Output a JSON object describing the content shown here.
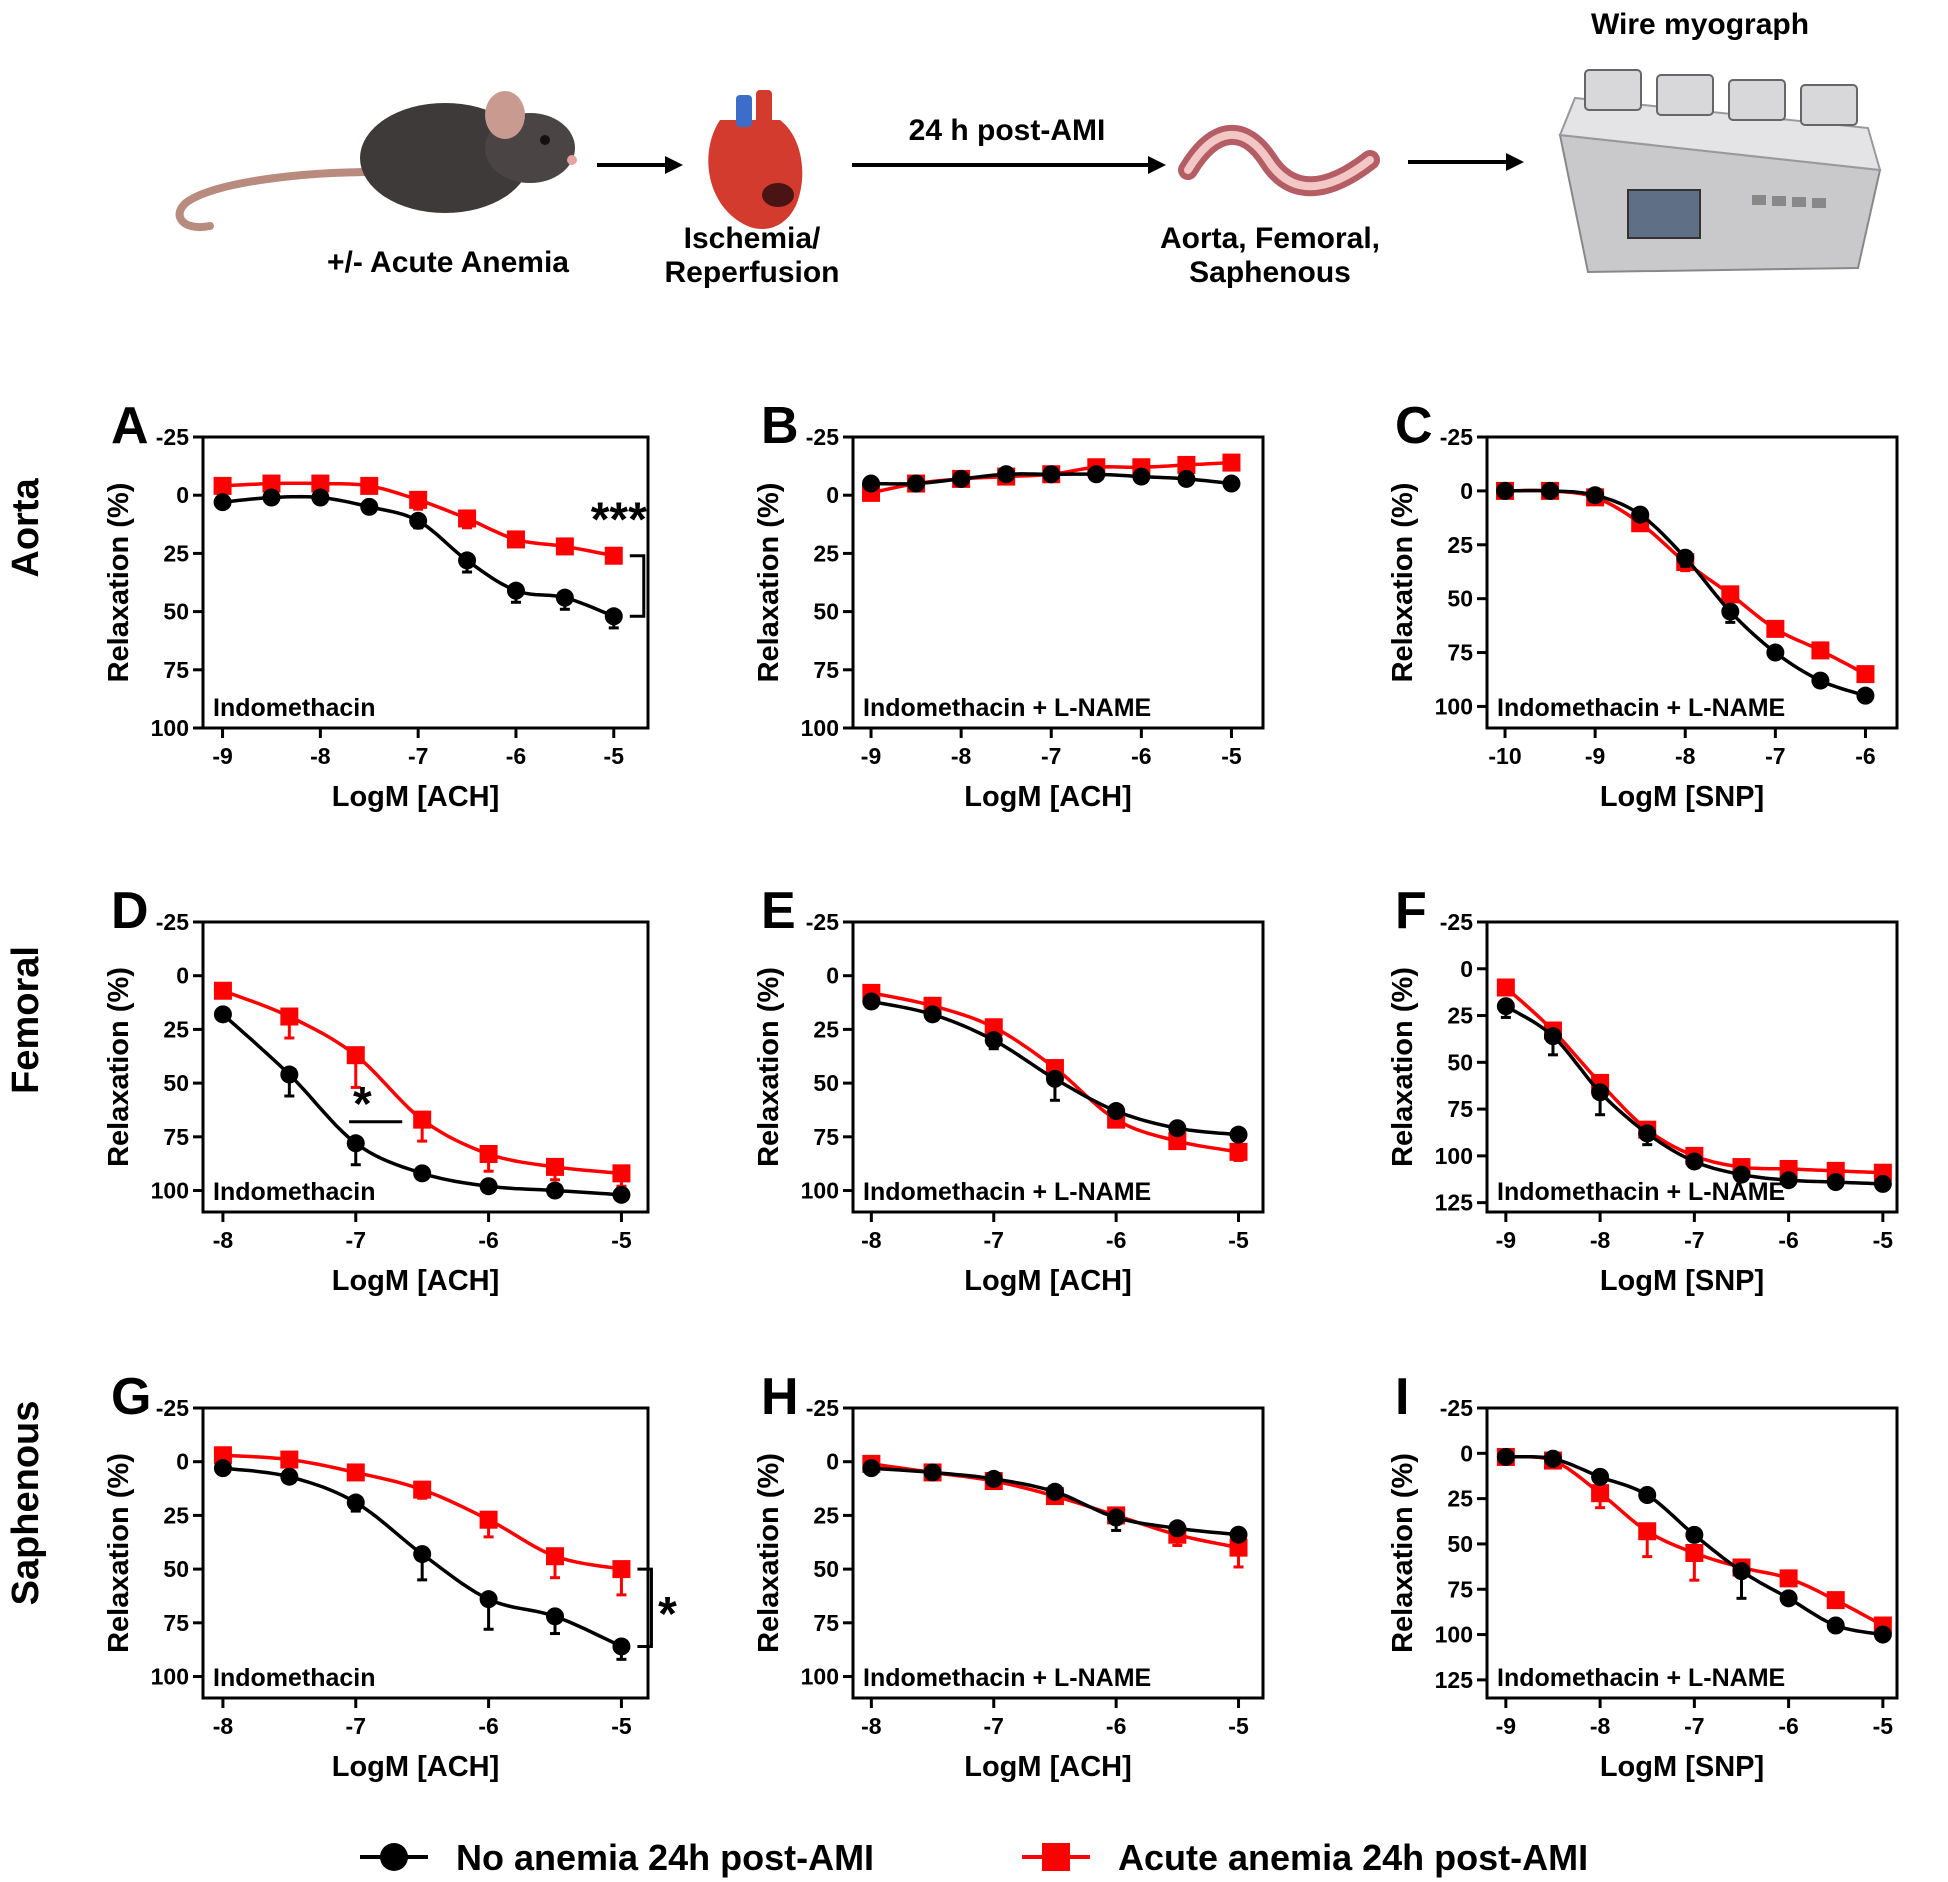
{
  "schematic": {
    "steps": [
      {
        "label": "+/- Acute Anemia",
        "icon": "mouse-icon"
      },
      {
        "label": "Ischemia/\nReperfusion",
        "icon": "heart-icon"
      },
      {
        "label": "Aorta, Femoral,\nSaphenous",
        "icon": "vessel-icon"
      },
      {
        "label": "Wire myograph",
        "icon": "myograph-icon"
      }
    ],
    "arrow_label": "24 h post-AMI"
  },
  "row_labels": [
    "Aorta",
    "Femoral",
    "Saphenous"
  ],
  "colors": {
    "control": "#000000",
    "anemia": "#ff0000"
  },
  "legend": [
    {
      "name": "No anemia 24h post-AMI",
      "color": "#000000",
      "marker": "circle"
    },
    {
      "name": "Acute anemia 24h post-AMI",
      "color": "#ff0000",
      "marker": "square"
    }
  ],
  "chart_data": [
    {
      "panel": "A",
      "type": "line",
      "inner_label": "Indomethacin",
      "xlabel": "LogM [ACH]",
      "ylabel": "Relaxation (%)",
      "xlim": [
        -9.2,
        -4.65
      ],
      "xticks": [
        -9,
        -8,
        -7,
        -6,
        -5
      ],
      "ylim": [
        -25,
        100
      ],
      "yticks": [
        -25,
        0,
        25,
        50,
        75,
        100
      ],
      "y_inverted": true,
      "x": [
        -9,
        -8.5,
        -8,
        -7.5,
        -7,
        -6.5,
        -6,
        -5.5,
        -5
      ],
      "series": [
        {
          "name": "No anemia 24h post-AMI",
          "values": [
            3,
            1,
            1,
            5,
            11,
            28,
            41,
            44,
            52
          ],
          "errors": [
            0,
            0,
            0,
            0,
            3,
            5,
            5,
            5,
            5
          ]
        },
        {
          "name": "Acute anemia 24h post-AMI",
          "values": [
            -4,
            -5,
            -5,
            -4,
            2,
            10,
            19,
            22,
            26
          ],
          "errors": [
            0,
            0,
            0,
            0,
            4,
            4,
            0,
            0,
            0
          ]
        }
      ],
      "significance": {
        "label": "***",
        "type": "bracket"
      }
    },
    {
      "panel": "B",
      "type": "line",
      "inner_label": "Indomethacin + L-NAME",
      "xlabel": "LogM [ACH]",
      "ylabel": "Relaxation (%)",
      "xlim": [
        -9.2,
        -4.65
      ],
      "xticks": [
        -9,
        -8,
        -7,
        -6,
        -5
      ],
      "ylim": [
        -25,
        100
      ],
      "yticks": [
        -25,
        0,
        25,
        50,
        75,
        100
      ],
      "y_inverted": true,
      "x": [
        -9,
        -8.5,
        -8,
        -7.5,
        -7,
        -6.5,
        -6,
        -5.5,
        -5
      ],
      "series": [
        {
          "name": "No anemia 24h post-AMI",
          "values": [
            -5,
            -5,
            -7,
            -9,
            -9,
            -9,
            -8,
            -7,
            -5
          ],
          "errors": [
            0,
            0,
            0,
            0,
            0,
            0,
            0,
            0,
            0
          ]
        },
        {
          "name": "Acute anemia 24h post-AMI",
          "values": [
            -1,
            -5,
            -7,
            -8,
            -9,
            -12,
            -12,
            -13,
            -14
          ],
          "errors": [
            0,
            0,
            0,
            0,
            0,
            0,
            0,
            0,
            0
          ]
        }
      ]
    },
    {
      "panel": "C",
      "type": "line",
      "inner_label": "Indomethacin + L-NAME",
      "xlabel": "LogM [SNP]",
      "ylabel": "Relaxation (%)",
      "xlim": [
        -10.2,
        -5.65
      ],
      "xticks": [
        -10,
        -9,
        -8,
        -7,
        -6
      ],
      "ylim": [
        -25,
        110
      ],
      "yticks": [
        -25,
        0,
        25,
        50,
        75,
        100
      ],
      "y_inverted": true,
      "x": [
        -10,
        -9.5,
        -9,
        -8.5,
        -8,
        -7.5,
        -7,
        -6.5,
        -6
      ],
      "series": [
        {
          "name": "No anemia 24h post-AMI",
          "values": [
            0,
            0,
            2,
            11,
            31,
            56,
            75,
            88,
            95
          ],
          "errors": [
            0,
            0,
            0,
            0,
            4,
            5,
            0,
            0,
            0
          ]
        },
        {
          "name": "Acute anemia 24h post-AMI",
          "values": [
            0,
            0,
            3,
            15,
            33,
            48,
            64,
            74,
            85
          ],
          "errors": [
            0,
            0,
            0,
            0,
            4,
            0,
            0,
            0,
            0
          ]
        }
      ]
    },
    {
      "panel": "D",
      "type": "line",
      "inner_label": "Indomethacin",
      "xlabel": "LogM [ACH]",
      "ylabel": "Relaxation (%)",
      "xlim": [
        -8.15,
        -4.8
      ],
      "xticks": [
        -8,
        -7,
        -6,
        -5
      ],
      "ylim": [
        -25,
        110
      ],
      "yticks": [
        -25,
        0,
        25,
        50,
        75,
        100
      ],
      "y_inverted": true,
      "x": [
        -8,
        -7.5,
        -7,
        -6.5,
        -6,
        -5.5,
        -5
      ],
      "series": [
        {
          "name": "No anemia 24h post-AMI",
          "values": [
            18,
            46,
            78,
            92,
            98,
            100,
            102
          ],
          "errors": [
            0,
            10,
            10,
            0,
            0,
            0,
            0
          ]
        },
        {
          "name": "Acute anemia 24h post-AMI",
          "values": [
            7,
            19,
            37,
            67,
            83,
            89,
            92
          ],
          "errors": [
            0,
            10,
            15,
            10,
            8,
            6,
            6
          ]
        }
      ],
      "significance": {
        "label": "*",
        "type": "bar"
      }
    },
    {
      "panel": "E",
      "type": "line",
      "inner_label": "Indomethacin + L-NAME",
      "xlabel": "LogM [ACH]",
      "ylabel": "Relaxation (%)",
      "xlim": [
        -8.15,
        -4.8
      ],
      "xticks": [
        -8,
        -7,
        -6,
        -5
      ],
      "ylim": [
        -25,
        110
      ],
      "yticks": [
        -25,
        0,
        25,
        50,
        75,
        100
      ],
      "y_inverted": true,
      "x": [
        -8,
        -7.5,
        -7,
        -6.5,
        -6,
        -5.5,
        -5
      ],
      "series": [
        {
          "name": "No anemia 24h post-AMI",
          "values": [
            12,
            18,
            30,
            48,
            63,
            71,
            74
          ],
          "errors": [
            0,
            0,
            4,
            10,
            0,
            0,
            0
          ]
        },
        {
          "name": "Acute anemia 24h post-AMI",
          "values": [
            8,
            14,
            24,
            43,
            67,
            77,
            82
          ],
          "errors": [
            0,
            0,
            0,
            0,
            0,
            0,
            4
          ]
        }
      ]
    },
    {
      "panel": "F",
      "type": "line",
      "inner_label": "Indomethacin + L-NAME",
      "xlabel": "LogM [SNP]",
      "ylabel": "Relaxation (%)",
      "xlim": [
        -9.2,
        -4.85
      ],
      "xticks": [
        -9,
        -8,
        -7,
        -6,
        -5
      ],
      "ylim": [
        -25,
        130
      ],
      "yticks": [
        -25,
        0,
        25,
        50,
        75,
        100,
        125
      ],
      "y_inverted": true,
      "x": [
        -9,
        -8.5,
        -8,
        -7.5,
        -7,
        -6.5,
        -6,
        -5.5,
        -5
      ],
      "series": [
        {
          "name": "No anemia 24h post-AMI",
          "values": [
            20,
            36,
            66,
            88,
            103,
            110,
            113,
            114,
            115
          ],
          "errors": [
            6,
            10,
            12,
            6,
            0,
            0,
            0,
            0,
            0
          ]
        },
        {
          "name": "Acute anemia 24h post-AMI",
          "values": [
            10,
            33,
            61,
            86,
            100,
            106,
            107,
            108,
            109
          ],
          "errors": [
            0,
            0,
            0,
            0,
            0,
            0,
            0,
            0,
            0
          ]
        }
      ]
    },
    {
      "panel": "G",
      "type": "line",
      "inner_label": "Indomethacin",
      "xlabel": "LogM [ACH]",
      "ylabel": "Relaxation (%)",
      "xlim": [
        -8.15,
        -4.8
      ],
      "xticks": [
        -8,
        -7,
        -6,
        -5
      ],
      "ylim": [
        -25,
        110
      ],
      "yticks": [
        -25,
        0,
        25,
        50,
        75,
        100
      ],
      "y_inverted": true,
      "x": [
        -8,
        -7.5,
        -7,
        -6.5,
        -6,
        -5.5,
        -5
      ],
      "series": [
        {
          "name": "No anemia 24h post-AMI",
          "values": [
            3,
            7,
            19,
            43,
            64,
            72,
            86
          ],
          "errors": [
            0,
            0,
            4,
            12,
            14,
            8,
            6
          ]
        },
        {
          "name": "Acute anemia 24h post-AMI",
          "values": [
            -3,
            -1,
            5,
            13,
            27,
            44,
            50
          ],
          "errors": [
            0,
            0,
            0,
            4,
            8,
            10,
            12
          ]
        }
      ],
      "significance": {
        "label": "*",
        "type": "bracket"
      }
    },
    {
      "panel": "H",
      "type": "line",
      "inner_label": "Indomethacin + L-NAME",
      "xlabel": "LogM [ACH]",
      "ylabel": "Relaxation (%)",
      "xlim": [
        -8.15,
        -4.8
      ],
      "xticks": [
        -8,
        -7,
        -6,
        -5
      ],
      "ylim": [
        -25,
        110
      ],
      "yticks": [
        -25,
        0,
        25,
        50,
        75,
        100
      ],
      "y_inverted": true,
      "x": [
        -8,
        -7.5,
        -7,
        -6.5,
        -6,
        -5.5,
        -5
      ],
      "series": [
        {
          "name": "No anemia 24h post-AMI",
          "values": [
            3,
            5,
            8,
            14,
            26,
            31,
            34
          ],
          "errors": [
            0,
            0,
            0,
            0,
            6,
            0,
            0
          ]
        },
        {
          "name": "Acute anemia 24h post-AMI",
          "values": [
            1,
            5,
            9,
            16,
            25,
            34,
            40
          ],
          "errors": [
            0,
            3,
            3,
            0,
            0,
            5,
            9
          ]
        }
      ]
    },
    {
      "panel": "I",
      "type": "line",
      "inner_label": "Indomethacin + L-NAME",
      "xlabel": "LogM [SNP]",
      "ylabel": "Relaxation (%)",
      "xlim": [
        -9.2,
        -4.85
      ],
      "xticks": [
        -9,
        -8,
        -7,
        -6,
        -5
      ],
      "ylim": [
        -25,
        135
      ],
      "yticks": [
        -25,
        0,
        25,
        50,
        75,
        100,
        125
      ],
      "y_inverted": true,
      "x": [
        -9,
        -8.5,
        -8,
        -7.5,
        -7,
        -6.5,
        -6,
        -5.5,
        -5
      ],
      "series": [
        {
          "name": "No anemia 24h post-AMI",
          "values": [
            2,
            3,
            13,
            23,
            45,
            65,
            80,
            95,
            100
          ],
          "errors": [
            0,
            0,
            0,
            0,
            0,
            15,
            0,
            0,
            0
          ]
        },
        {
          "name": "Acute anemia 24h post-AMI",
          "values": [
            2,
            4,
            22,
            43,
            55,
            63,
            69,
            81,
            95
          ],
          "errors": [
            0,
            0,
            8,
            14,
            15,
            0,
            0,
            0,
            0
          ]
        }
      ]
    }
  ]
}
